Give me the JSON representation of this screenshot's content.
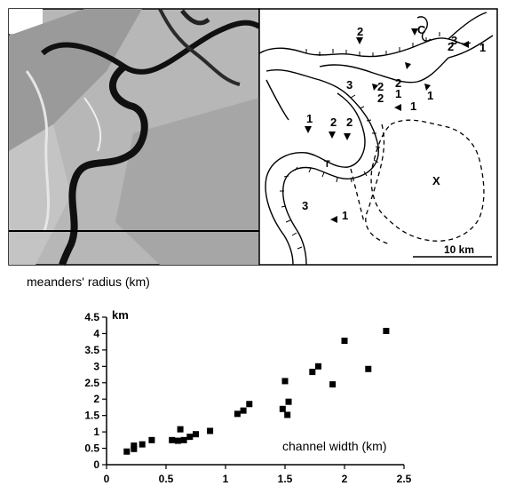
{
  "map": {
    "labels": [
      "C",
      "2",
      "2",
      "3",
      "1",
      "2",
      "2",
      "1",
      "1",
      "3",
      "2",
      "1",
      "1",
      "2",
      "2",
      "T",
      "3",
      "1",
      "X"
    ],
    "scale_label": "10 km"
  },
  "chart_data": {
    "type": "scatter",
    "title": "meanders' radius (km)",
    "ylabel": "km",
    "xlabel": "channel width (km)",
    "xlim": [
      0,
      2.5
    ],
    "ylim": [
      0,
      4.5
    ],
    "xticks": [
      "0",
      "0.5",
      "1",
      "1.5",
      "2",
      "2.5"
    ],
    "yticks": [
      "0",
      "0.5",
      "1",
      "1.5",
      "2",
      "2.5",
      "3",
      "3.5",
      "4",
      "4.5"
    ],
    "series": [
      {
        "points": [
          [
            0.17,
            0.4
          ],
          [
            0.23,
            0.58
          ],
          [
            0.23,
            0.48
          ],
          [
            0.3,
            0.62
          ],
          [
            0.38,
            0.75
          ],
          [
            0.55,
            0.75
          ],
          [
            0.6,
            0.73
          ],
          [
            0.62,
            1.08
          ],
          [
            0.65,
            0.75
          ],
          [
            0.7,
            0.85
          ],
          [
            0.75,
            0.93
          ],
          [
            0.87,
            1.03
          ],
          [
            1.1,
            1.55
          ],
          [
            1.15,
            1.65
          ],
          [
            1.2,
            1.85
          ],
          [
            1.48,
            1.7
          ],
          [
            1.5,
            2.55
          ],
          [
            1.52,
            1.52
          ],
          [
            1.53,
            1.92
          ],
          [
            1.73,
            2.83
          ],
          [
            1.78,
            3.0
          ],
          [
            1.9,
            2.45
          ],
          [
            2.0,
            3.78
          ],
          [
            2.2,
            2.92
          ],
          [
            2.35,
            4.08
          ]
        ]
      }
    ]
  }
}
